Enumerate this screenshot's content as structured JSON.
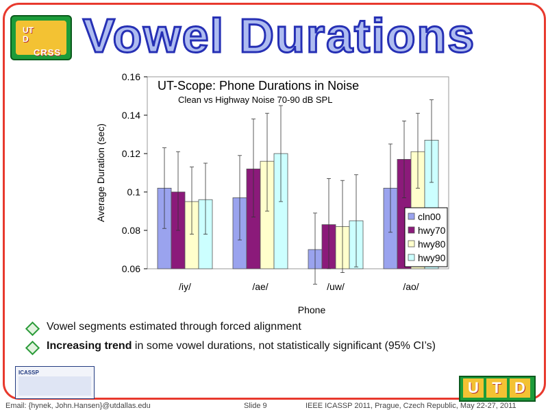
{
  "slide": {
    "title": "Vowel Durations",
    "logo_left": {
      "text_top": "UT",
      "text_side": "D",
      "text_bottom": "CRSS"
    },
    "logo_right": {
      "letters": [
        "U",
        "T",
        "D"
      ]
    },
    "icassp_logo": {
      "text": "ICASSP"
    }
  },
  "chart_data": {
    "type": "bar",
    "title": "UT-Scope: Phone Durations in Noise",
    "subtitle": "Clean vs Highway Noise 70-90 dB SPL",
    "xlabel": "Phone",
    "ylabel": "Average Duration (sec)",
    "ylim": [
      0.06,
      0.16
    ],
    "yticks": [
      "0.06",
      "0.08",
      "0.1",
      "0.12",
      "0.14",
      "0.16"
    ],
    "categories": [
      "/iy/",
      "/ae/",
      "/uw/",
      "/ao/"
    ],
    "legend_position": "bottom-right",
    "series": [
      {
        "name": "cln00",
        "color": "#9aa3ee",
        "values": [
          0.102,
          0.097,
          0.07,
          0.102
        ],
        "err_low": [
          0.081,
          0.075,
          0.052,
          0.079
        ],
        "err_high": [
          0.123,
          0.119,
          0.089,
          0.125
        ]
      },
      {
        "name": "hwy70",
        "color": "#8b1a7a",
        "values": [
          0.1,
          0.112,
          0.083,
          0.117
        ],
        "err_low": [
          0.08,
          0.087,
          0.06,
          0.097
        ],
        "err_high": [
          0.121,
          0.138,
          0.107,
          0.137
        ]
      },
      {
        "name": "hwy80",
        "color": "#ffffcc",
        "values": [
          0.095,
          0.116,
          0.082,
          0.121
        ],
        "err_low": [
          0.078,
          0.09,
          0.058,
          0.102
        ],
        "err_high": [
          0.113,
          0.141,
          0.106,
          0.141
        ]
      },
      {
        "name": "hwy90",
        "color": "#ccffff",
        "values": [
          0.096,
          0.12,
          0.085,
          0.127
        ],
        "err_low": [
          0.078,
          0.095,
          0.061,
          0.105
        ],
        "err_high": [
          0.115,
          0.145,
          0.109,
          0.148
        ]
      }
    ]
  },
  "bullets": [
    {
      "bold": "",
      "text": "Vowel segments estimated through forced alignment"
    },
    {
      "bold": "Increasing trend",
      "text": " in some vowel durations, not statistically significant (95% CI’s)"
    }
  ],
  "footer": {
    "email": "Email: {hynek, John.Hansen}@utdallas.edu",
    "slide": "Slide  9",
    "conference": "IEEE ICASSP 2011, Prague, Czech Republic, May 22-27, 2011"
  }
}
